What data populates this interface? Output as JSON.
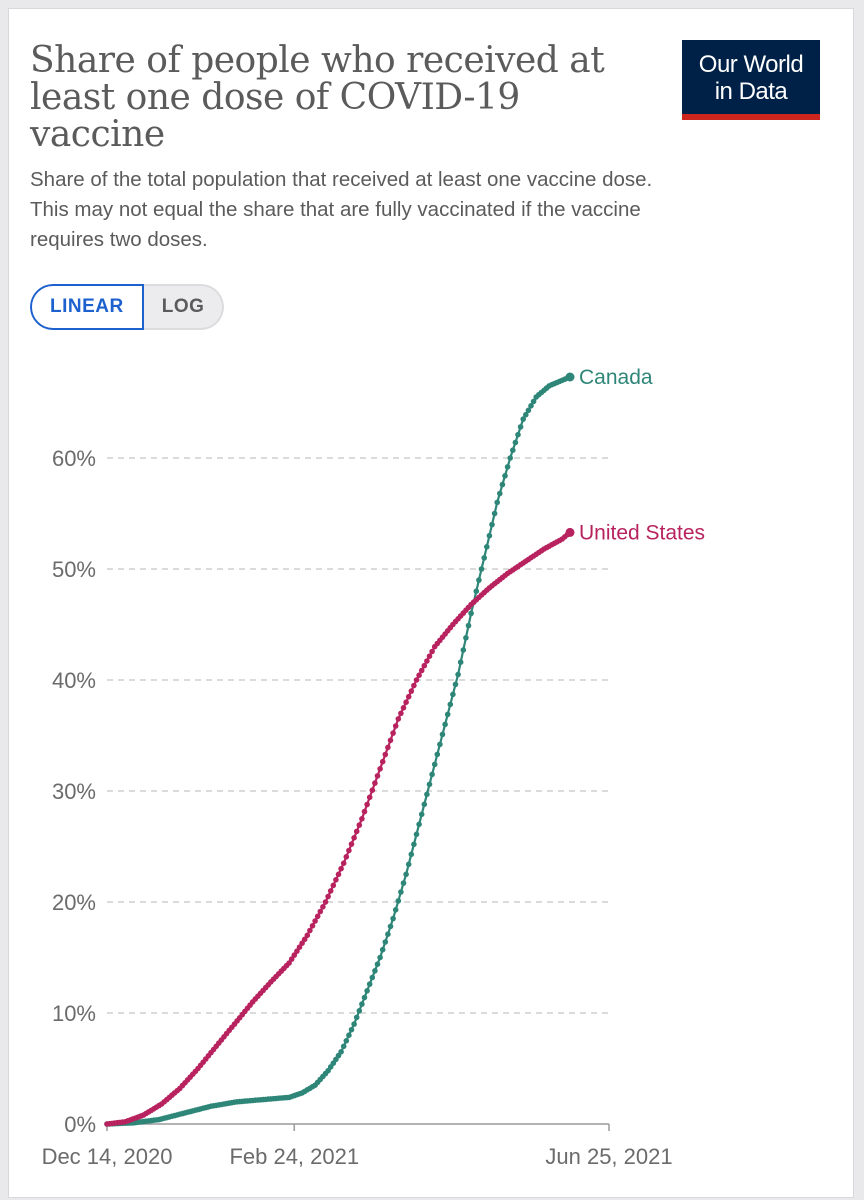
{
  "header": {
    "title": "Share of people who received at least one dose of COVID-19 vaccine",
    "title_lines": [
      "Share of people who received at",
      "least one dose of COVID-19",
      "vaccine"
    ],
    "subtitle_lines": [
      "Share of the total population that received at least one vaccine dose.",
      "This may not equal the share that are fully vaccinated if the vaccine",
      "requires two doses."
    ]
  },
  "logo": {
    "line1": "Our World",
    "line2": "in Data"
  },
  "scale_toggle": {
    "linear_label": "LINEAR",
    "log_label": "LOG",
    "selected": "LINEAR"
  },
  "chart_data": {
    "type": "line",
    "title": "Share of people who received at least one dose of COVID-19 vaccine",
    "xlabel": "",
    "ylabel": "",
    "x_start": "Dec 14, 2020",
    "x_end": "Jun 25, 2021",
    "x_days_total": 193,
    "x_ticks": [
      {
        "day": 0,
        "label": "Dec 14, 2020"
      },
      {
        "day": 72,
        "label": "Feb 24, 2021"
      },
      {
        "day": 193,
        "label": "Jun 25, 2021"
      }
    ],
    "ylim": [
      0,
      70
    ],
    "y_ticks": [
      0,
      10,
      20,
      30,
      40,
      50,
      60
    ],
    "y_tick_labels": [
      "0%",
      "10%",
      "20%",
      "30%",
      "40%",
      "50%",
      "60%"
    ],
    "grid": true,
    "series": [
      {
        "name": "Canada",
        "color": "#2e8678",
        "points": [
          [
            0,
            0
          ],
          [
            10,
            0.1
          ],
          [
            20,
            0.4
          ],
          [
            30,
            1.0
          ],
          [
            40,
            1.6
          ],
          [
            50,
            2.0
          ],
          [
            60,
            2.2
          ],
          [
            70,
            2.4
          ],
          [
            75,
            2.8
          ],
          [
            80,
            3.5
          ],
          [
            85,
            4.8
          ],
          [
            90,
            6.5
          ],
          [
            95,
            9.0
          ],
          [
            100,
            12.0
          ],
          [
            105,
            15.0
          ],
          [
            110,
            18.5
          ],
          [
            115,
            22.5
          ],
          [
            120,
            27.0
          ],
          [
            125,
            31.5
          ],
          [
            130,
            36.0
          ],
          [
            135,
            40.5
          ],
          [
            140,
            46.0
          ],
          [
            145,
            51.0
          ],
          [
            150,
            56.0
          ],
          [
            155,
            60.0
          ],
          [
            160,
            63.5
          ],
          [
            165,
            65.5
          ],
          [
            170,
            66.5
          ],
          [
            175,
            67.0
          ],
          [
            178,
            67.3
          ]
        ]
      },
      {
        "name": "United States",
        "color": "#b8235f",
        "points": [
          [
            0,
            0
          ],
          [
            7,
            0.2
          ],
          [
            14,
            0.8
          ],
          [
            21,
            1.8
          ],
          [
            28,
            3.2
          ],
          [
            35,
            5.0
          ],
          [
            42,
            7.0
          ],
          [
            49,
            9.0
          ],
          [
            56,
            11.0
          ],
          [
            63,
            12.8
          ],
          [
            70,
            14.5
          ],
          [
            77,
            17.0
          ],
          [
            84,
            20.0
          ],
          [
            91,
            23.5
          ],
          [
            98,
            27.5
          ],
          [
            105,
            32.0
          ],
          [
            112,
            36.5
          ],
          [
            119,
            40.0
          ],
          [
            126,
            43.0
          ],
          [
            133,
            45.0
          ],
          [
            140,
            46.8
          ],
          [
            147,
            48.3
          ],
          [
            154,
            49.6
          ],
          [
            161,
            50.7
          ],
          [
            168,
            51.8
          ],
          [
            175,
            52.7
          ],
          [
            178,
            53.3
          ]
        ]
      }
    ]
  }
}
